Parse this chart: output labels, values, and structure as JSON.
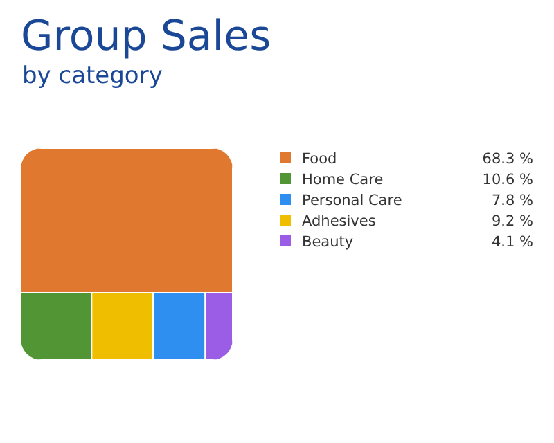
{
  "chart_data": {
    "type": "other",
    "title": "Group Sales",
    "subtitle": "by category",
    "categories": [
      "Food",
      "Home Care",
      "Personal Care",
      "Adhesives",
      "Beauty"
    ],
    "values": [
      68.3,
      10.6,
      7.8,
      9.2,
      4.1
    ],
    "value_labels": [
      "68.3 %",
      "10.6 %",
      "7.8 %",
      "9.2 %",
      "4.1 %"
    ],
    "colors": [
      "#e07830",
      "#529535",
      "#2f8ff0",
      "#f0be00",
      "#9b5de5"
    ]
  }
}
